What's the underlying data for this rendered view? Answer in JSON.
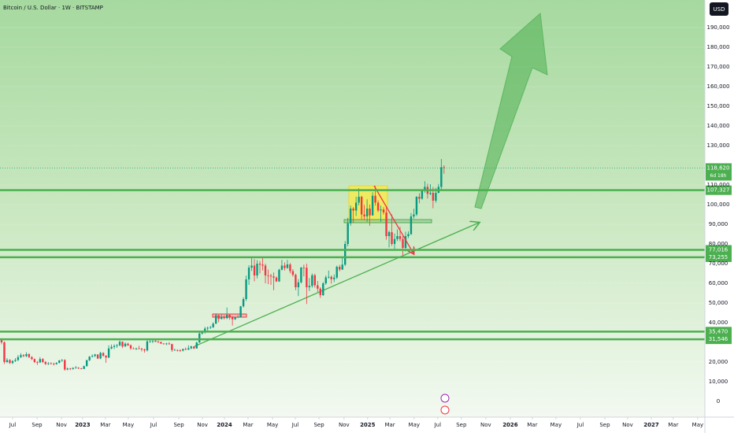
{
  "header": {
    "symbol": "Bitcoin / U.S. Dollar · 1W · BITSTAMP",
    "currency": "USD"
  },
  "chart_data": {
    "type": "candlestick",
    "ohlc": [
      [
        31000,
        31500,
        29000,
        30000
      ],
      [
        30000,
        30500,
        19000,
        20000
      ],
      [
        20000,
        22000,
        19500,
        21000
      ],
      [
        21000,
        21500,
        19000,
        19500
      ],
      [
        19500,
        21000,
        19000,
        20500
      ],
      [
        20500,
        22000,
        20000,
        21000
      ],
      [
        21000,
        23500,
        20500,
        22500
      ],
      [
        22500,
        24500,
        22000,
        23500
      ],
      [
        23500,
        24000,
        22500,
        23000
      ],
      [
        23000,
        25000,
        22500,
        24000
      ],
      [
        24000,
        24500,
        22000,
        22500
      ],
      [
        22500,
        23000,
        21000,
        21500
      ],
      [
        21500,
        21800,
        19500,
        20000
      ],
      [
        20000,
        20500,
        18500,
        19800
      ],
      [
        19800,
        22500,
        19500,
        21500
      ],
      [
        21500,
        22000,
        19500,
        20000
      ],
      [
        20000,
        20500,
        18500,
        19000
      ],
      [
        19000,
        20000,
        18500,
        19300
      ],
      [
        19300,
        19900,
        18800,
        19200
      ],
      [
        19200,
        19700,
        18200,
        19000
      ],
      [
        19000,
        19900,
        18600,
        19600
      ],
      [
        19600,
        21000,
        19300,
        20800
      ],
      [
        20800,
        21500,
        20100,
        21000
      ],
      [
        21000,
        21400,
        15600,
        16200
      ],
      [
        16200,
        17200,
        15800,
        16700
      ],
      [
        16700,
        17000,
        15800,
        16500
      ],
      [
        16500,
        17300,
        16100,
        17000
      ],
      [
        17000,
        18000,
        16700,
        17100
      ],
      [
        17100,
        17400,
        16400,
        16800
      ],
      [
        16800,
        17000,
        16300,
        16500
      ],
      [
        16500,
        18200,
        16400,
        17900
      ],
      [
        17900,
        21200,
        17700,
        20900
      ],
      [
        20900,
        23000,
        20500,
        22700
      ],
      [
        22700,
        23900,
        22300,
        23100
      ],
      [
        23100,
        24200,
        22500,
        23800
      ],
      [
        23800,
        24000,
        21500,
        21800
      ],
      [
        21800,
        25200,
        21400,
        24600
      ],
      [
        24600,
        25000,
        22700,
        23200
      ],
      [
        23200,
        23500,
        19600,
        22300
      ],
      [
        22300,
        28500,
        22000,
        26900
      ],
      [
        26900,
        28900,
        26500,
        27700
      ],
      [
        27700,
        29000,
        26600,
        28200
      ],
      [
        28200,
        29200,
        27200,
        28500
      ],
      [
        28500,
        30900,
        28000,
        30300
      ],
      [
        30300,
        30500,
        27100,
        27900
      ],
      [
        27900,
        30000,
        27800,
        29300
      ],
      [
        29300,
        29800,
        28200,
        28500
      ],
      [
        28500,
        28900,
        26200,
        26900
      ],
      [
        26900,
        27500,
        26600,
        26800
      ],
      [
        26800,
        27300,
        26100,
        26900
      ],
      [
        26900,
        28300,
        26500,
        26800
      ],
      [
        26800,
        27200,
        25400,
        26400
      ],
      [
        26400,
        26800,
        24800,
        25900
      ],
      [
        25900,
        31400,
        25400,
        30500
      ],
      [
        30500,
        31300,
        29800,
        30500
      ],
      [
        30500,
        31000,
        29600,
        30800
      ],
      [
        30800,
        31800,
        30200,
        30300
      ],
      [
        30300,
        30900,
        29700,
        30200
      ],
      [
        30200,
        30300,
        29100,
        29400
      ],
      [
        29400,
        29600,
        28900,
        29300
      ],
      [
        29300,
        29800,
        28600,
        29400
      ],
      [
        29400,
        30100,
        28800,
        29100
      ],
      [
        29100,
        29300,
        25200,
        26100
      ],
      [
        26100,
        26800,
        25800,
        26100
      ],
      [
        26100,
        26400,
        25300,
        25900
      ],
      [
        25900,
        26500,
        25100,
        25800
      ],
      [
        25800,
        26800,
        25400,
        26600
      ],
      [
        26600,
        27400,
        26000,
        26300
      ],
      [
        26300,
        28500,
        26100,
        27000
      ],
      [
        27000,
        28300,
        26500,
        27900
      ],
      [
        27900,
        28000,
        26600,
        26900
      ],
      [
        26900,
        30400,
        26800,
        29900
      ],
      [
        29900,
        35200,
        29800,
        34500
      ],
      [
        34500,
        35300,
        33900,
        35000
      ],
      [
        35000,
        37900,
        34400,
        37000
      ],
      [
        37000,
        38000,
        35500,
        37400
      ],
      [
        37400,
        38400,
        36800,
        37700
      ],
      [
        37700,
        40200,
        37300,
        39500
      ],
      [
        39500,
        44700,
        39300,
        43800
      ],
      [
        43800,
        44000,
        40200,
        41900
      ],
      [
        41900,
        44300,
        41600,
        43000
      ],
      [
        43000,
        43800,
        41600,
        42300
      ],
      [
        42300,
        47700,
        41800,
        44000
      ],
      [
        44000,
        44300,
        41500,
        42800
      ],
      [
        42800,
        43300,
        38500,
        41700
      ],
      [
        41700,
        43000,
        41400,
        42600
      ],
      [
        42600,
        43800,
        42300,
        43000
      ],
      [
        43000,
        48500,
        42800,
        48300
      ],
      [
        48300,
        52900,
        47700,
        52000
      ],
      [
        52000,
        63900,
        51000,
        62000
      ],
      [
        62000,
        69200,
        59200,
        68000
      ],
      [
        68000,
        73700,
        66300,
        69000
      ],
      [
        69000,
        72300,
        61000,
        64000
      ],
      [
        64000,
        71800,
        62500,
        70000
      ],
      [
        70000,
        71300,
        65000,
        69500
      ],
      [
        69500,
        72800,
        66500,
        69000
      ],
      [
        69000,
        70000,
        60000,
        64000
      ],
      [
        64000,
        67000,
        59600,
        63900
      ],
      [
        63900,
        64800,
        59200,
        63500
      ],
      [
        63500,
        65500,
        56500,
        62900
      ],
      [
        62900,
        63500,
        60600,
        61000
      ],
      [
        61000,
        67400,
        60700,
        66900
      ],
      [
        66900,
        71900,
        66600,
        69000
      ],
      [
        69000,
        70600,
        66500,
        67800
      ],
      [
        67800,
        71900,
        67400,
        69600
      ],
      [
        69600,
        70300,
        65100,
        66200
      ],
      [
        66200,
        67200,
        63400,
        64300
      ],
      [
        64300,
        64900,
        56500,
        58000
      ],
      [
        58000,
        62200,
        53500,
        60500
      ],
      [
        60500,
        68300,
        59900,
        68000
      ],
      [
        68000,
        69500,
        63500,
        67900
      ],
      [
        67900,
        70000,
        49500,
        58000
      ],
      [
        58000,
        62700,
        56100,
        58700
      ],
      [
        58700,
        65000,
        57800,
        64100
      ],
      [
        64100,
        64900,
        57800,
        59000
      ],
      [
        59000,
        61200,
        55600,
        57300
      ],
      [
        57300,
        58000,
        52600,
        54000
      ],
      [
        54000,
        60600,
        53600,
        60000
      ],
      [
        60000,
        64000,
        59200,
        63000
      ],
      [
        63000,
        66500,
        62400,
        63300
      ],
      [
        63300,
        64000,
        59800,
        62100
      ],
      [
        62100,
        64500,
        60600,
        62900
      ],
      [
        62900,
        69000,
        62200,
        68400
      ],
      [
        68400,
        69400,
        66100,
        67000
      ],
      [
        67000,
        73600,
        66800,
        69500
      ],
      [
        69500,
        81500,
        68800,
        80000
      ],
      [
        80000,
        93300,
        78800,
        90500
      ],
      [
        90500,
        99500,
        89300,
        98000
      ],
      [
        98000,
        98800,
        90800,
        97000
      ],
      [
        97000,
        104000,
        94200,
        101000
      ],
      [
        101000,
        108300,
        99600,
        104000
      ],
      [
        104000,
        104500,
        92200,
        95000
      ],
      [
        95000,
        99900,
        92100,
        94000
      ],
      [
        94000,
        102700,
        91200,
        98000
      ],
      [
        98000,
        100000,
        89300,
        94500
      ],
      [
        94500,
        106300,
        94400,
        104500
      ],
      [
        104500,
        109400,
        99500,
        101000
      ],
      [
        101000,
        102200,
        96200,
        97000
      ],
      [
        97000,
        99500,
        91200,
        97500
      ],
      [
        97500,
        98700,
        94900,
        96000
      ],
      [
        96000,
        99500,
        82200,
        84000
      ],
      [
        84000,
        86800,
        78200,
        86000
      ],
      [
        86000,
        95000,
        79000,
        80000
      ],
      [
        80000,
        85300,
        76600,
        82500
      ],
      [
        82500,
        87400,
        81500,
        84000
      ],
      [
        84000,
        88700,
        81300,
        82500
      ],
      [
        82500,
        84000,
        74400,
        78000
      ],
      [
        78000,
        86200,
        76200,
        84000
      ],
      [
        84000,
        86400,
        83000,
        85000
      ],
      [
        85000,
        95700,
        84600,
        94000
      ],
      [
        94000,
        97900,
        92900,
        95000
      ],
      [
        95000,
        104300,
        94200,
        104000
      ],
      [
        104000,
        105800,
        100700,
        103000
      ],
      [
        103000,
        107100,
        102500,
        107000
      ],
      [
        107000,
        111900,
        106100,
        109000
      ],
      [
        109000,
        110600,
        103100,
        105500
      ],
      [
        105500,
        110400,
        104800,
        106000
      ],
      [
        106000,
        108900,
        98200,
        102000
      ],
      [
        102000,
        108500,
        101000,
        106000
      ],
      [
        106000,
        110500,
        105800,
        109000
      ],
      [
        109000,
        123200,
        107500,
        119000
      ],
      [
        119000,
        120000,
        115700,
        118620
      ]
    ],
    "up_color": "#089981",
    "down_color": "#f23645",
    "xlim": [
      -0.57,
      255.9
    ],
    "xticks": [
      {
        "value": 4.0,
        "label": "Jul"
      },
      {
        "value": 12.9,
        "label": "Sep"
      },
      {
        "value": 21.8,
        "label": "Nov"
      },
      {
        "value": 29.5,
        "label": "2023"
      },
      {
        "value": 37.8,
        "label": "Mar"
      },
      {
        "value": 46.1,
        "label": "May"
      },
      {
        "value": 55.3,
        "label": "Jul"
      },
      {
        "value": 64.5,
        "label": "Sep"
      },
      {
        "value": 73.1,
        "label": "Nov"
      },
      {
        "value": 81.1,
        "label": "2024"
      },
      {
        "value": 89.7,
        "label": "Mar"
      },
      {
        "value": 98.6,
        "label": "May"
      },
      {
        "value": 106.9,
        "label": "Jul"
      },
      {
        "value": 115.5,
        "label": "Sep"
      },
      {
        "value": 124.6,
        "label": "Nov"
      },
      {
        "value": 133.2,
        "label": "2025"
      },
      {
        "value": 141.3,
        "label": "Mar"
      },
      {
        "value": 150.1,
        "label": "May"
      },
      {
        "value": 158.7,
        "label": "Jul"
      },
      {
        "value": 167.3,
        "label": "Sep"
      },
      {
        "value": 176.2,
        "label": "Nov"
      },
      {
        "value": 185.1,
        "label": "2026"
      },
      {
        "value": 193.1,
        "label": "Mar"
      },
      {
        "value": 201.7,
        "label": "May"
      },
      {
        "value": 210.6,
        "label": "Jul"
      },
      {
        "value": 219.5,
        "label": "Sep"
      },
      {
        "value": 227.8,
        "label": "Nov"
      },
      {
        "value": 236.4,
        "label": "2027"
      },
      {
        "value": 244.4,
        "label": "Mar"
      },
      {
        "value": 253.3,
        "label": "May"
      }
    ],
    "ylim": [
      -4000,
      204000
    ],
    "yticks": [
      0,
      {
        "value": 10000,
        "label": "10,000"
      },
      {
        "value": 20000,
        "label": "20,000"
      },
      {
        "value": 40000,
        "label": "40,000"
      },
      {
        "value": 50000,
        "label": "50,000"
      },
      {
        "value": 60000,
        "label": "60,000"
      },
      {
        "value": 70000,
        "label": "70,000"
      },
      {
        "value": 80000,
        "label": "80,000"
      },
      {
        "value": 90000,
        "label": "90,000"
      },
      {
        "value": 100000,
        "label": "100,000"
      },
      {
        "value": 110000,
        "label": "110,000"
      },
      {
        "value": 130000,
        "label": "130,000"
      },
      {
        "value": 140000,
        "label": "140,000"
      },
      {
        "value": 150000,
        "label": "150,000"
      },
      {
        "value": 160000,
        "label": "160,000"
      },
      {
        "value": 170000,
        "label": "170,000"
      },
      {
        "value": 180000,
        "label": "180,000"
      },
      {
        "value": 190000,
        "label": "190,000"
      }
    ],
    "level_color": "#4caf50",
    "levels": [
      {
        "value": 107327,
        "label": "107,327"
      },
      {
        "value": 77016,
        "label": "77,016"
      },
      {
        "value": 73255,
        "label": "73,255"
      },
      {
        "value": 35470,
        "label": "35,470"
      },
      {
        "value": 31546,
        "label": "31,546"
      }
    ],
    "last_price": {
      "value": 118620,
      "label": "118,620"
    },
    "countdown": "6d 18h"
  }
}
